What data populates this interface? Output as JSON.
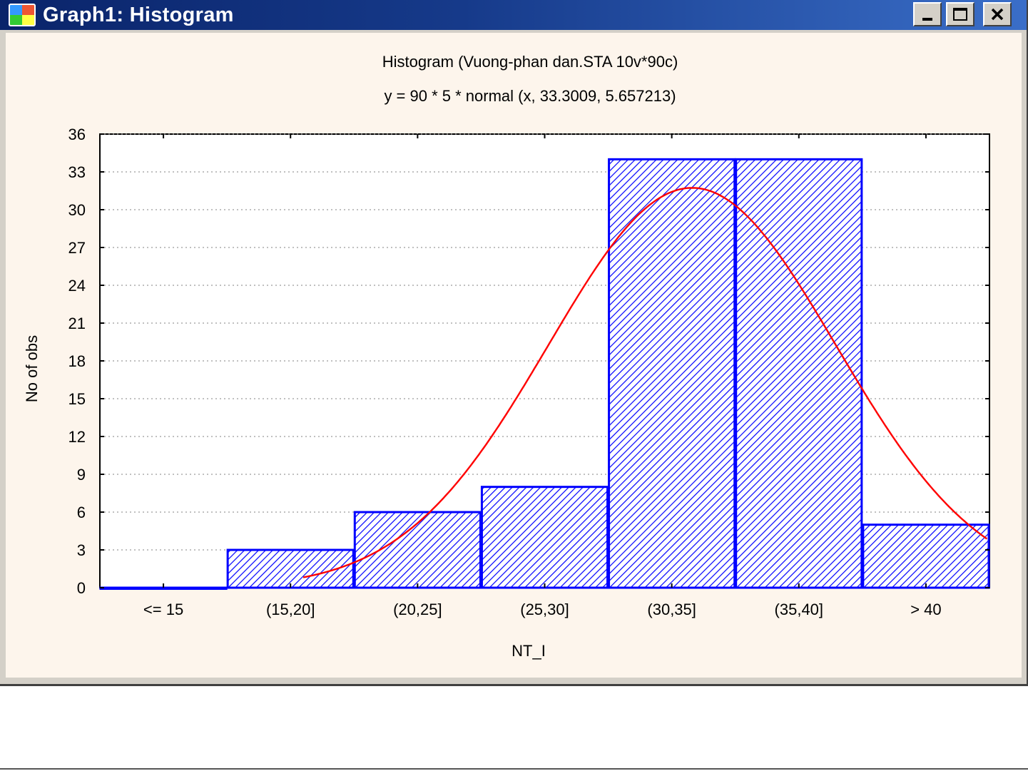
{
  "window": {
    "title": "Graph1: Histogram",
    "icon": "statistica-graph-icon",
    "controls": [
      "minimize-icon",
      "maximize-icon",
      "close-icon"
    ]
  },
  "chart_data": {
    "type": "bar",
    "title": "Histogram (Vuong-phan dan.STA 10v*90c)",
    "subtitle": "y = 90 * 5 * normal (x, 33.3009, 5.657213)",
    "xlabel": "NT_I",
    "ylabel": "No of obs",
    "categories": [
      "<= 15",
      "(15,20]",
      "(20,25]",
      "(25,30]",
      "(30,35]",
      "(35,40]",
      "> 40"
    ],
    "values": [
      0,
      3,
      6,
      8,
      34,
      34,
      5
    ],
    "ylim": [
      0,
      36
    ],
    "yticks": [
      0,
      3,
      6,
      9,
      12,
      15,
      18,
      21,
      24,
      27,
      30,
      33,
      36
    ],
    "grid": true,
    "bar_fill": "hatched",
    "bar_color": "#0000ff",
    "normal_fit": {
      "n": 90,
      "bin_width": 5,
      "mean": 33.3009,
      "sd": 5.657213,
      "color": "#ff0000"
    }
  }
}
